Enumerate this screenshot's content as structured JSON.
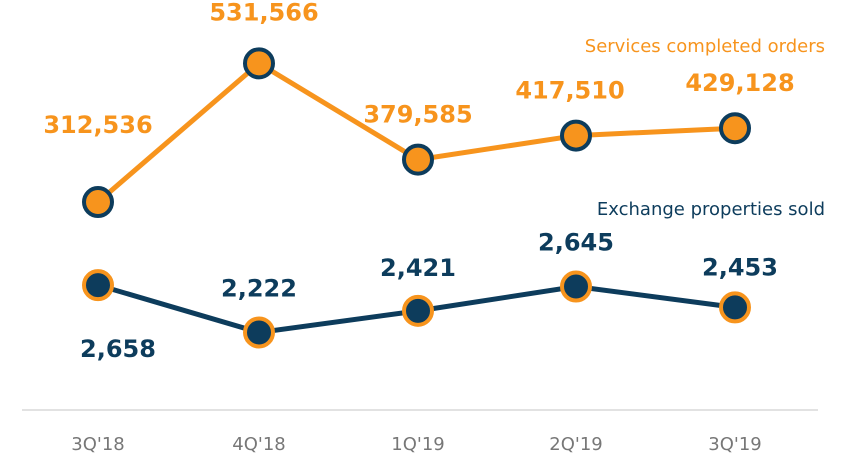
{
  "chart_data": {
    "type": "line",
    "categories": [
      "3Q'18",
      "4Q'18",
      "1Q'19",
      "2Q'19",
      "3Q'19"
    ],
    "series": [
      {
        "name": "Services completed orders",
        "color": "#f7941d",
        "values": [
          312536,
          531566,
          379585,
          417510,
          429128
        ],
        "value_labels": [
          "312,536",
          "531,566",
          "379,585",
          "417,510",
          "429,128"
        ]
      },
      {
        "name": "Exchange properties sold",
        "color": "#0d3c5c",
        "axis": "y2",
        "values": [
          2658,
          2222,
          2421,
          2645,
          2453
        ],
        "value_labels": [
          "2,658",
          "2,222",
          "2,421",
          "2,645",
          "2,453"
        ]
      }
    ],
    "ylim": [
      0,
      600000
    ],
    "y2lim": [
      1600,
      5100
    ]
  }
}
